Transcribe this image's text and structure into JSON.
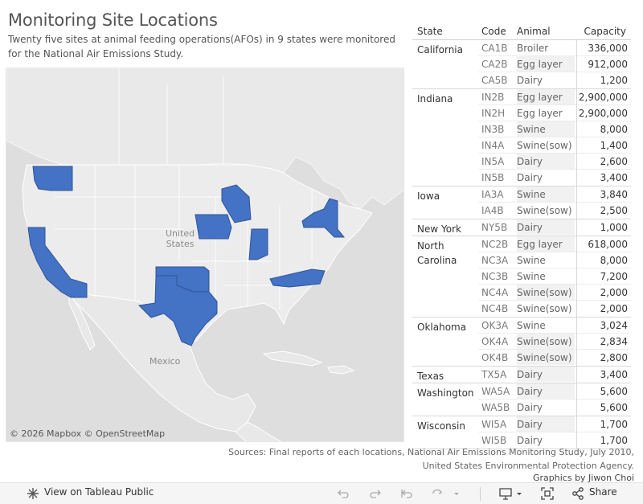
{
  "header": {
    "title": "Monitoring Site Locations",
    "subtitle": "Twenty five sites at animal feeding operations(AFOs) in 9 states were monitored for the National Air Emissions Study."
  },
  "map": {
    "labels": {
      "usa_line1": "United",
      "usa_line2": "States",
      "mexico": "Mexico"
    },
    "attribution": "© 2026 Mapbox  © OpenStreetMap",
    "highlight_color": "#4472c4",
    "highlighted_states": [
      "Washington",
      "California",
      "Iowa",
      "Wisconsin",
      "Indiana",
      "New York",
      "North Carolina",
      "Oklahoma",
      "Texas"
    ]
  },
  "table": {
    "headers": {
      "state": "State",
      "code": "Code",
      "animal": "Animal",
      "capacity": "Capacity"
    },
    "groups": [
      {
        "state": "California",
        "rows": [
          {
            "code": "CA1B",
            "animal": "Broiler",
            "capacity": "336,000"
          },
          {
            "code": "CA2B",
            "animal": "Egg layer",
            "capacity": "912,000"
          },
          {
            "code": "CA5B",
            "animal": "Dairy",
            "capacity": "1,200"
          }
        ]
      },
      {
        "state": "Indiana",
        "rows": [
          {
            "code": "IN2B",
            "animal": "Egg layer",
            "capacity": "2,900,000"
          },
          {
            "code": "IN2H",
            "animal": "Egg layer",
            "capacity": "2,900,000"
          },
          {
            "code": "IN3B",
            "animal": "Swine",
            "capacity": "8,000"
          },
          {
            "code": "IN4A",
            "animal": "Swine(sow)",
            "capacity": "1,400"
          },
          {
            "code": "IN5A",
            "animal": "Dairy",
            "capacity": "2,600"
          },
          {
            "code": "IN5B",
            "animal": "Dairy",
            "capacity": "3,400"
          }
        ]
      },
      {
        "state": "Iowa",
        "rows": [
          {
            "code": "IA3A",
            "animal": "Swine",
            "capacity": "3,840"
          },
          {
            "code": "IA4B",
            "animal": "Swine(sow)",
            "capacity": "2,500"
          }
        ]
      },
      {
        "state": "New York",
        "rows": [
          {
            "code": "NY5B",
            "animal": "Dairy",
            "capacity": "1,000"
          }
        ]
      },
      {
        "state": "North Carolina",
        "rows": [
          {
            "code": "NC2B",
            "animal": "Egg layer",
            "capacity": "618,000"
          },
          {
            "code": "NC3A",
            "animal": "Swine",
            "capacity": "8,000"
          },
          {
            "code": "NC3B",
            "animal": "Swine",
            "capacity": "7,200"
          },
          {
            "code": "NC4A",
            "animal": "Swine(sow)",
            "capacity": "2,000"
          },
          {
            "code": "NC4B",
            "animal": "Swine(sow)",
            "capacity": "2,000"
          }
        ]
      },
      {
        "state": "Oklahoma",
        "rows": [
          {
            "code": "OK3A",
            "animal": "Swine",
            "capacity": "3,024"
          },
          {
            "code": "OK4A",
            "animal": "Swine(sow)",
            "capacity": "2,834"
          },
          {
            "code": "OK4B",
            "animal": "Swine(sow)",
            "capacity": "2,800"
          }
        ]
      },
      {
        "state": "Texas",
        "rows": [
          {
            "code": "TX5A",
            "animal": "Dairy",
            "capacity": "3,400"
          }
        ]
      },
      {
        "state": "Washington",
        "rows": [
          {
            "code": "WA5A",
            "animal": "Dairy",
            "capacity": "5,600"
          },
          {
            "code": "WA5B",
            "animal": "Dairy",
            "capacity": "5,600"
          }
        ]
      },
      {
        "state": "Wisconsin",
        "rows": [
          {
            "code": "WI5A",
            "animal": "Dairy",
            "capacity": "1,700"
          },
          {
            "code": "WI5B",
            "animal": "Dairy",
            "capacity": "1,700"
          }
        ]
      }
    ]
  },
  "footer": {
    "sources_line1": "Sources: Final reports of each locations, National Air Emissions Monitoring Study, July 2010,",
    "sources_line2": "United States Environmental Protection Agency.",
    "credit": "Graphics by Jiwon Choi"
  },
  "toolbar": {
    "view_label": "View on Tableau Public",
    "share_label": "Share",
    "icons": [
      "tableau-icon",
      "undo-icon",
      "redo-icon",
      "revert-icon",
      "refresh-icon",
      "download-icon",
      "fullscreen-icon",
      "share-icon"
    ]
  }
}
